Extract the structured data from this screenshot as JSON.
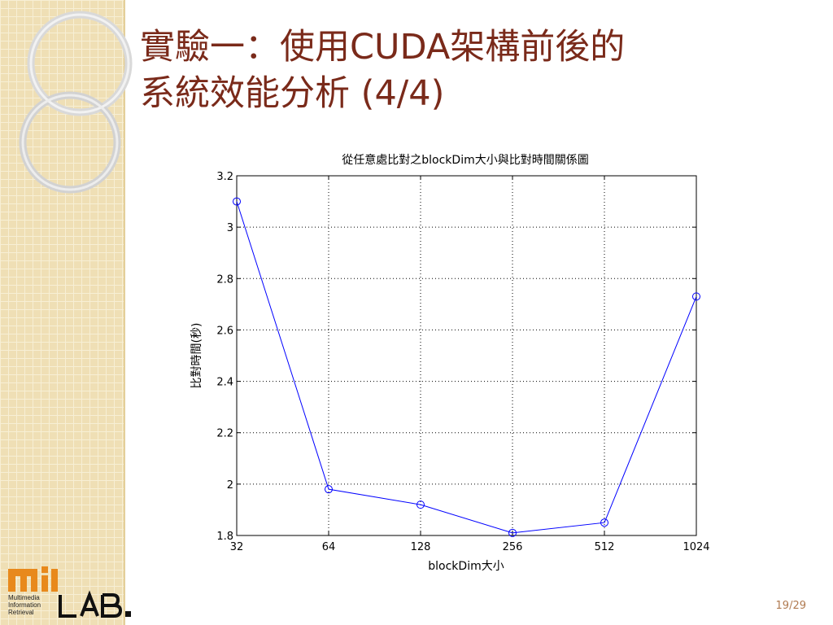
{
  "slide": {
    "title_line1": "實驗一：使用CUDA架構前後的",
    "title_line2": "系統效能分析 (4/4)",
    "page_number": "19/29"
  },
  "logo": {
    "mark_text": "MIR",
    "lab_text": "LAB",
    "caption": [
      "Multimedia",
      "Information",
      "Retrieval"
    ],
    "colors": {
      "orange": "#e8891c",
      "black": "#111111"
    }
  },
  "chart_data": {
    "type": "line",
    "title": "從任意處比對之blockDim大小與比對時間關係圖",
    "xlabel": "blockDim大小",
    "ylabel": "比對時間(秒)",
    "categories": [
      "32",
      "64",
      "128",
      "256",
      "512",
      "1024"
    ],
    "series": [
      {
        "values": [
          3.1,
          1.98,
          1.92,
          1.81,
          1.85,
          2.73
        ],
        "color": "#0000ff",
        "marker": "circle"
      }
    ],
    "ylim": [
      1.8,
      3.2
    ],
    "yticks": [
      "1.8",
      "2",
      "2.2",
      "2.4",
      "2.6",
      "2.8",
      "3",
      "3.2"
    ],
    "grid": "dotted"
  }
}
